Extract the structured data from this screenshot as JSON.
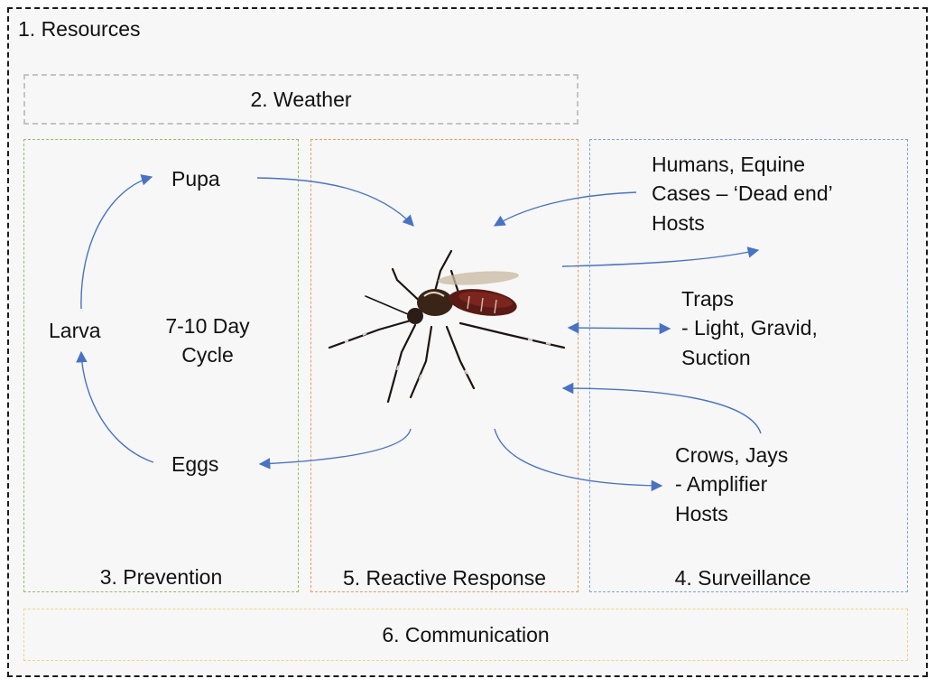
{
  "sections": {
    "resources": "1. Resources",
    "weather": "2. Weather",
    "prevention": "3. Prevention",
    "surveillance": "4. Surveillance",
    "reactive": "5. Reactive Response",
    "communication": "6. Communication"
  },
  "lifecycle": {
    "pupa": "Pupa",
    "larva": "Larva",
    "eggs": "Eggs",
    "cycle_line1": "7-10 Day",
    "cycle_line2": "Cycle"
  },
  "hosts": {
    "dead_end_line1": "Humans, Equine",
    "dead_end_line2": "Cases – ‘Dead end’",
    "dead_end_line3": "Hosts",
    "traps_line1": "Traps",
    "traps_line2": "- Light, Gravid,",
    "traps_line3": "Suction",
    "amplifier_line1": "Crows, Jays",
    "amplifier_line2": "- Amplifier",
    "amplifier_line3": "Hosts"
  },
  "colors": {
    "arrow": "#4a72c4",
    "weather_border": "#c4c4c4",
    "prevention_border": "#93bf6a",
    "reactive_border": "#ec9a64",
    "surveillance_border": "#7fa5d9",
    "communication_border": "#f1d48a"
  },
  "image": "mosquito-photo"
}
